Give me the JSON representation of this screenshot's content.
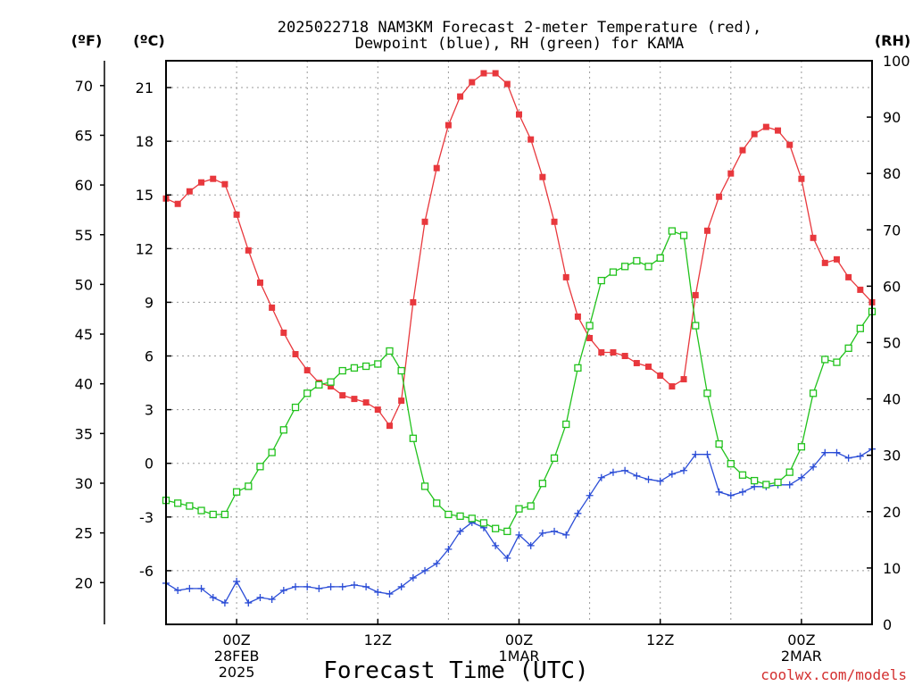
{
  "chart_data": {
    "type": "line",
    "title": [
      "2025022718 NAM3KM Forecast 2-meter Temperature (red),",
      "Dewpoint (blue), RH (green) for KAMA"
    ],
    "xlabel": "Forecast Time (UTC)",
    "x_tick_labels": [
      {
        "hour": 6,
        "lines": [
          "00Z",
          "28FEB",
          "2025"
        ]
      },
      {
        "hour": 18,
        "lines": [
          "12Z"
        ]
      },
      {
        "hour": 30,
        "lines": [
          "00Z",
          "1MAR"
        ]
      },
      {
        "hour": 42,
        "lines": [
          "12Z"
        ]
      },
      {
        "hour": 54,
        "lines": [
          "00Z",
          "2MAR"
        ]
      }
    ],
    "xlim": [
      0,
      60
    ],
    "left_axis_c": {
      "unit": "(ºC)",
      "ylim": [
        -9,
        22.5
      ],
      "ticks": [
        -6,
        -3,
        0,
        3,
        6,
        9,
        12,
        15,
        18,
        21
      ]
    },
    "left_axis_f": {
      "unit": "(ºF)",
      "ticks": [
        20,
        25,
        30,
        35,
        40,
        45,
        50,
        55,
        60,
        65,
        70
      ]
    },
    "right_axis_rh": {
      "unit": "(RH)",
      "ylim": [
        0,
        100
      ],
      "ticks": [
        0,
        10,
        20,
        30,
        40,
        50,
        60,
        70,
        80,
        90,
        100
      ]
    },
    "series": [
      {
        "color": "#e8383d",
        "marker": "filled-square",
        "axis": "C",
        "values": [
          14.8,
          14.5,
          15.2,
          15.7,
          15.9,
          15.6,
          13.9,
          11.9,
          10.1,
          8.7,
          7.3,
          6.1,
          5.2,
          4.5,
          4.3,
          3.8,
          3.6,
          3.4,
          3.0,
          2.1,
          3.5,
          9.0,
          13.5,
          16.5,
          18.9,
          20.5,
          21.3,
          21.8,
          21.8,
          21.2,
          19.5,
          18.1,
          16.0,
          13.5,
          10.4,
          8.2,
          7.0,
          6.2,
          6.2,
          6.0,
          5.6,
          5.4,
          4.9,
          4.3,
          4.7,
          9.4,
          13.0,
          14.9,
          16.2,
          17.5,
          18.4,
          18.8,
          18.6,
          17.8,
          15.9,
          12.6,
          11.2,
          11.4,
          10.4,
          9.7,
          9.0
        ]
      },
      {
        "color": "#2a4cd6",
        "marker": "plus",
        "axis": "C",
        "values": [
          -6.7,
          -7.1,
          -7.0,
          -7.0,
          -7.5,
          -7.8,
          -6.6,
          -7.8,
          -7.5,
          -7.6,
          -7.1,
          -6.9,
          -6.9,
          -7.0,
          -6.9,
          -6.9,
          -6.8,
          -6.9,
          -7.2,
          -7.3,
          -6.9,
          -6.4,
          -6.0,
          -5.6,
          -4.8,
          -3.8,
          -3.3,
          -3.6,
          -4.6,
          -5.3,
          -4.0,
          -4.6,
          -3.9,
          -3.8,
          -4.0,
          -2.8,
          -1.8,
          -0.8,
          -0.5,
          -0.4,
          -0.7,
          -0.9,
          -1.0,
          -0.6,
          -0.4,
          0.5,
          0.5,
          -1.6,
          -1.8,
          -1.6,
          -1.3,
          -1.3,
          -1.2,
          -1.2,
          -0.8,
          -0.2,
          0.6,
          0.6,
          0.3,
          0.4,
          0.8
        ]
      },
      {
        "color": "#21c21c",
        "marker": "open-square",
        "axis": "RH",
        "values": [
          22,
          21.5,
          21,
          20.2,
          19.5,
          19.5,
          23.5,
          24.5,
          28,
          30.5,
          34.5,
          38.5,
          41,
          42.5,
          43,
          45,
          45.5,
          45.8,
          46.2,
          48.5,
          45,
          33,
          24.5,
          21.5,
          19.5,
          19.2,
          18.8,
          18,
          17,
          16.5,
          20.5,
          21,
          25,
          29.5,
          35.5,
          45.5,
          53,
          61,
          62.5,
          63.5,
          64.5,
          63.5,
          65,
          69.8,
          69,
          53,
          41,
          32,
          28.5,
          26.5,
          25.5,
          24.8,
          25.2,
          27,
          31.5,
          41,
          47,
          46.5,
          49,
          52.5,
          55.5
        ]
      }
    ],
    "grid": true,
    "grid_style": "dotted"
  },
  "credit": "coolwx.com/models"
}
